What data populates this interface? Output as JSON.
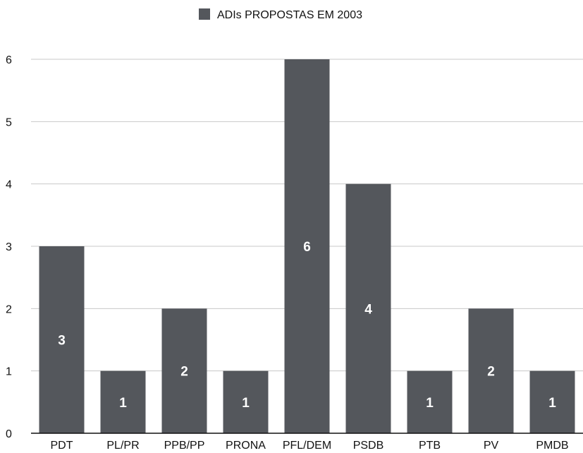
{
  "chart_data": {
    "type": "bar",
    "categories": [
      "PDT",
      "PL/PR",
      "PPB/PP",
      "PRONA",
      "PFL/DEM",
      "PSDB",
      "PTB",
      "PV",
      "PMDB"
    ],
    "series": [
      {
        "name": "ADIs PROPOSTAS EM 2003",
        "values": [
          3,
          1,
          2,
          1,
          6,
          4,
          1,
          2,
          1
        ]
      }
    ],
    "data_labels": [
      "3",
      "1",
      "2",
      "1",
      "6",
      "4",
      "1",
      "2",
      "1"
    ],
    "y_ticks": [
      "0",
      "1",
      "2",
      "3",
      "4",
      "5",
      "6"
    ],
    "ylim": [
      0,
      6
    ],
    "grid": true,
    "legend_position": "top-center",
    "title": "",
    "xlabel": "",
    "ylabel": "",
    "colors": {
      "bar": "#54575c",
      "grid": "#c8c8c8",
      "axis": "#111111"
    }
  }
}
